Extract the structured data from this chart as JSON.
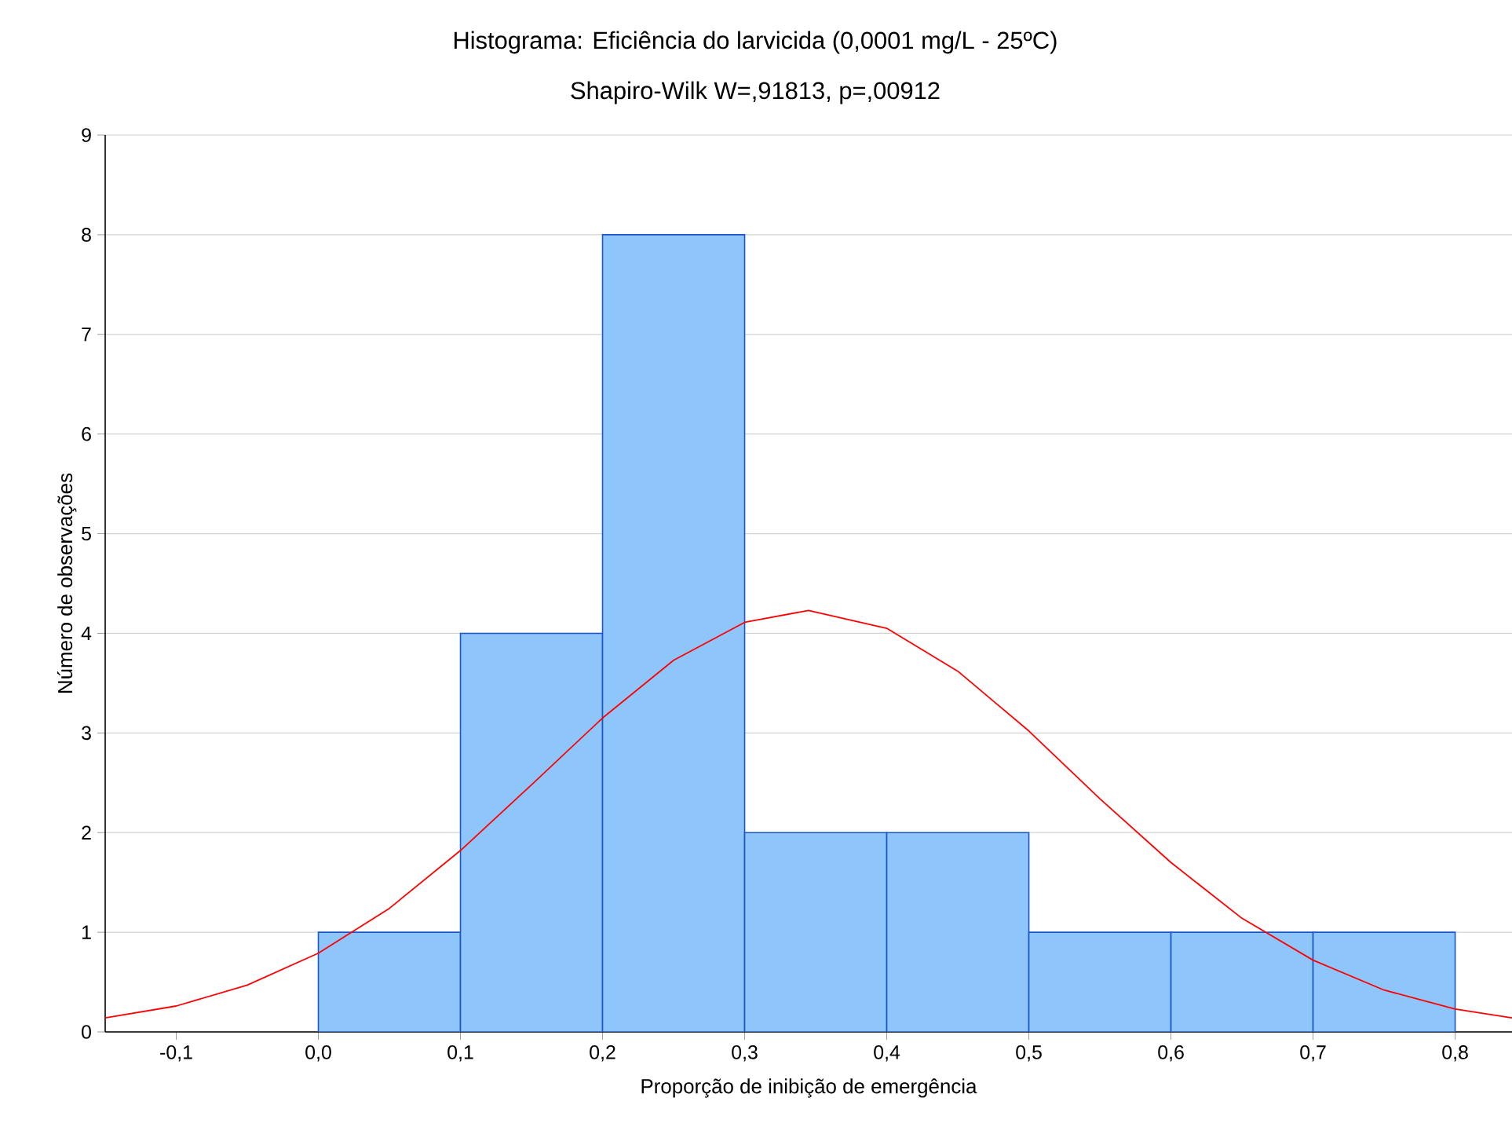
{
  "chart_data": {
    "type": "histogram",
    "title": "Histograma: Eficiência do larvicida (0,0001 mg/L - 25ºC)",
    "subtitle": "Shapiro-Wilk W=,91813, p=,00912",
    "xlabel": "Proporção de inibição de emergência",
    "ylabel": "Número de observações",
    "bins": [
      0.0,
      0.1,
      0.2,
      0.3,
      0.4,
      0.5,
      0.6,
      0.7,
      0.8
    ],
    "values": [
      1,
      4,
      8,
      2,
      2,
      1,
      1,
      1
    ],
    "color": "#8ec5fa",
    "series": [
      {
        "type": "line",
        "color": "#ff0000",
        "x": [
          -0.15,
          -0.1,
          -0.05,
          0.0,
          0.05,
          0.1,
          0.15,
          0.2,
          0.25,
          0.3,
          0.345,
          0.4,
          0.45,
          0.5,
          0.55,
          0.6,
          0.65,
          0.7,
          0.75,
          0.8,
          0.84
        ],
        "values": [
          0.14,
          0.26,
          0.47,
          0.79,
          1.24,
          1.82,
          2.48,
          3.15,
          3.73,
          4.11,
          4.23,
          4.05,
          3.62,
          3.02,
          2.34,
          1.7,
          1.14,
          0.72,
          0.42,
          0.23,
          0.14
        ]
      }
    ],
    "xlim": [
      -0.15,
      0.84
    ],
    "ylim": [
      0,
      9
    ],
    "xticks": [
      {
        "value": -0.1,
        "label": "-0,1"
      },
      {
        "value": 0.0,
        "label": "0,0"
      },
      {
        "value": 0.1,
        "label": "0,1"
      },
      {
        "value": 0.2,
        "label": "0,2"
      },
      {
        "value": 0.3,
        "label": "0,3"
      },
      {
        "value": 0.4,
        "label": "0,4"
      },
      {
        "value": 0.5,
        "label": "0,5"
      },
      {
        "value": 0.6,
        "label": "0,6"
      },
      {
        "value": 0.7,
        "label": "0,7"
      },
      {
        "value": 0.8,
        "label": "0,8"
      }
    ],
    "yticks": [
      0,
      1,
      2,
      3,
      4,
      5,
      6,
      7,
      8,
      9
    ],
    "grid": "y",
    "marker": "none",
    "line_style": "solid"
  }
}
